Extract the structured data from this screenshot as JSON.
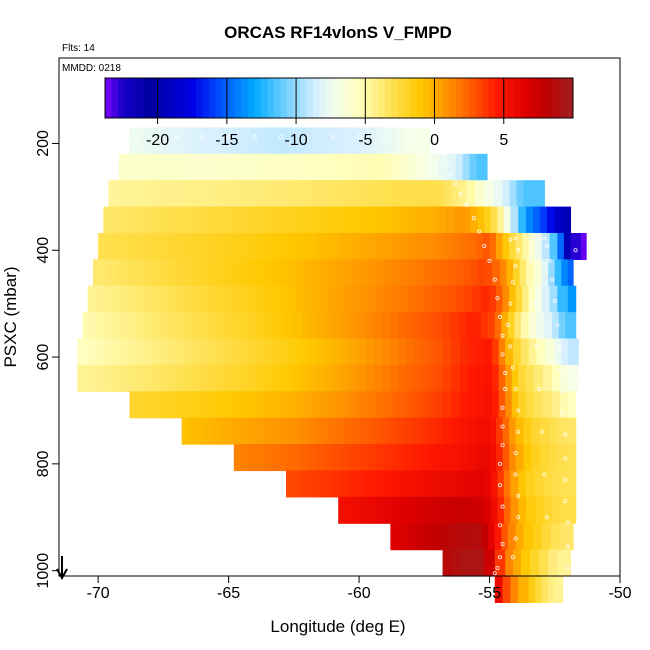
{
  "chart_data": {
    "type": "heatmap",
    "title": "ORCAS RF14vlonS V_FMPD",
    "annotations": {
      "flights": "Flts: 14",
      "date": "MMDD: 0218"
    },
    "xlabel": "Longitude (deg E)",
    "ylabel": "PSXC (mbar)",
    "xlim": [
      -71.5,
      -50
    ],
    "ylim": [
      1010,
      40
    ],
    "y_reversed": true,
    "xticks": [
      -70,
      -65,
      -60,
      -55,
      -50
    ],
    "yticks": [
      200,
      400,
      600,
      800,
      1000
    ],
    "grid": false,
    "colorbar": {
      "placement": "top-inside",
      "range": [
        -23.8,
        10
      ],
      "ticks": [
        -20,
        -15,
        -10,
        -5,
        0,
        5
      ],
      "scale": [
        {
          "v": -23.8,
          "c": "#8000ff"
        },
        {
          "v": -22.5,
          "c": "#1400c8"
        },
        {
          "v": -20.5,
          "c": "#0000a0"
        },
        {
          "v": -17.5,
          "c": "#0000e6"
        },
        {
          "v": -15.5,
          "c": "#0050ff"
        },
        {
          "v": -13.0,
          "c": "#00aaff"
        },
        {
          "v": -10.5,
          "c": "#80d4ff"
        },
        {
          "v": -8.5,
          "c": "#d8f0ff"
        },
        {
          "v": -7.0,
          "c": "#f6ffe8"
        },
        {
          "v": -5.5,
          "c": "#ffffc0"
        },
        {
          "v": -3.0,
          "c": "#ffe050"
        },
        {
          "v": -1.0,
          "c": "#ffc800"
        },
        {
          "v": 1.0,
          "c": "#ff9000"
        },
        {
          "v": 3.0,
          "c": "#ff5000"
        },
        {
          "v": 4.5,
          "c": "#ff1800"
        },
        {
          "v": 6.5,
          "c": "#e00000"
        },
        {
          "v": 8.0,
          "c": "#c00000"
        },
        {
          "v": 10.0,
          "c": "#a02020"
        }
      ]
    },
    "rows": [
      {
        "p": 170,
        "cells": [
          [
            -68.8,
            -7.4
          ],
          [
            -66.0,
            -8.4
          ],
          [
            -63.0,
            -9.0
          ],
          [
            -60.0,
            -8.4
          ],
          [
            -58.0,
            -7.0
          ]
        ],
        "end": -57.3
      },
      {
        "p": 237,
        "cells": [
          [
            -69.2,
            -5.8
          ],
          [
            -66.0,
            -6.0
          ],
          [
            -62.0,
            -5.6
          ],
          [
            -59.0,
            -5.2
          ],
          [
            -57.3,
            -7.0
          ],
          [
            -56.3,
            -8.2
          ],
          [
            -55.5,
            -11.5
          ]
        ],
        "end": -55.1
      },
      {
        "p": 263,
        "cells": [
          [
            -69.6,
            -4.6
          ],
          [
            -66.0,
            -4.2
          ],
          [
            -62.0,
            -3.6
          ],
          [
            -59.0,
            -3.0
          ],
          [
            -57.0,
            -2.8
          ],
          [
            -55.9,
            -4.5
          ],
          [
            -55.2,
            -6.5
          ],
          [
            -54.5,
            -8.0
          ],
          [
            -53.7,
            -11.5
          ]
        ],
        "end": -52.9
      },
      {
        "p": 327,
        "cells": [
          [
            -69.8,
            -3.6
          ],
          [
            -66.0,
            -2.6
          ],
          [
            -62.0,
            -1.6
          ],
          [
            -59.0,
            -0.8
          ],
          [
            -57.0,
            0.0
          ],
          [
            -56.0,
            0.8
          ],
          [
            -55.2,
            -1.0
          ],
          [
            -54.7,
            -3.5
          ],
          [
            -54.2,
            -8.0
          ],
          [
            -53.6,
            -13.5
          ],
          [
            -52.8,
            -16.5
          ],
          [
            -52.2,
            -19.5
          ]
        ],
        "end": -51.9
      },
      {
        "p": 365,
        "cells": [
          [
            -70.0,
            -3.0
          ],
          [
            -66.0,
            -2.0
          ],
          [
            -62.0,
            -0.8
          ],
          [
            -59.0,
            0.4
          ],
          [
            -57.0,
            1.2
          ],
          [
            -55.5,
            2.2
          ],
          [
            -55.0,
            3.0
          ],
          [
            -54.5,
            -0.5
          ],
          [
            -54.0,
            -3.0
          ],
          [
            -53.5,
            -5.5
          ],
          [
            -53.0,
            -8.0
          ],
          [
            -52.4,
            -12.5
          ],
          [
            -51.9,
            -22.0
          ],
          [
            -51.5,
            -23.5
          ]
        ],
        "end": -51.3
      },
      {
        "p": 420,
        "cells": [
          [
            -70.2,
            -3.8
          ],
          [
            -67.0,
            -2.4
          ],
          [
            -63.0,
            -0.8
          ],
          [
            -60.0,
            0.6
          ],
          [
            -57.5,
            1.8
          ],
          [
            -56.0,
            2.6
          ],
          [
            -55.2,
            3.4
          ],
          [
            -54.6,
            2.0
          ],
          [
            -54.1,
            -1.0
          ],
          [
            -53.6,
            -4.5
          ],
          [
            -53.0,
            -7.0
          ],
          [
            -52.5,
            -11.0
          ],
          [
            -52.0,
            -15.0
          ]
        ],
        "end": -51.8
      },
      {
        "p": 468,
        "cells": [
          [
            -70.4,
            -4.6
          ],
          [
            -67.0,
            -3.0
          ],
          [
            -63.0,
            -1.0
          ],
          [
            -60.0,
            0.8
          ],
          [
            -57.5,
            2.2
          ],
          [
            -56.0,
            3.2
          ],
          [
            -55.0,
            4.2
          ],
          [
            -54.5,
            2.0
          ],
          [
            -54.0,
            -1.5
          ],
          [
            -53.5,
            -5.0
          ],
          [
            -53.0,
            -7.5
          ],
          [
            -52.4,
            -10.5
          ],
          [
            -52.0,
            -13.5
          ]
        ],
        "end": -51.7
      },
      {
        "p": 520,
        "cells": [
          [
            -70.6,
            -5.2
          ],
          [
            -68.0,
            -3.8
          ],
          [
            -64.0,
            -1.8
          ],
          [
            -61.0,
            0.2
          ],
          [
            -58.5,
            2.0
          ],
          [
            -56.8,
            3.2
          ],
          [
            -55.6,
            4.4
          ],
          [
            -54.8,
            3.2
          ],
          [
            -54.3,
            -1.0
          ],
          [
            -53.8,
            -4.5
          ],
          [
            -53.2,
            -7.0
          ],
          [
            -52.6,
            -8.5
          ],
          [
            -52.1,
            -11.5
          ]
        ],
        "end": -51.7
      },
      {
        "p": 570,
        "cells": [
          [
            -70.8,
            -5.6
          ],
          [
            -68.0,
            -4.2
          ],
          [
            -64.0,
            -2.2
          ],
          [
            -61.0,
            -0.4
          ],
          [
            -58.5,
            1.6
          ],
          [
            -56.8,
            3.0
          ],
          [
            -55.8,
            4.2
          ],
          [
            -54.9,
            4.6
          ],
          [
            -54.4,
            0.5
          ],
          [
            -53.8,
            -3.0
          ],
          [
            -53.2,
            -5.0
          ],
          [
            -52.5,
            -7.0
          ],
          [
            -52.0,
            -9.0
          ]
        ],
        "end": -51.6
      },
      {
        "p": 630,
        "cells": [
          [
            -70.8,
            -4.6
          ],
          [
            -68.0,
            -3.6
          ],
          [
            -64.0,
            -1.8
          ],
          [
            -61.0,
            0.0
          ],
          [
            -58.5,
            2.0
          ],
          [
            -56.8,
            3.2
          ],
          [
            -55.8,
            4.4
          ],
          [
            -54.9,
            5.0
          ],
          [
            -54.4,
            1.5
          ],
          [
            -53.9,
            -2.0
          ],
          [
            -53.3,
            -3.5
          ],
          [
            -52.6,
            -5.0
          ],
          [
            -52.0,
            -7.0
          ]
        ],
        "end": -51.6
      },
      {
        "p": 683,
        "cells": [
          [
            -68.8,
            -2.2
          ],
          [
            -66.0,
            -1.4
          ],
          [
            -63.0,
            -0.4
          ],
          [
            -60.5,
            1.0
          ],
          [
            -58.5,
            2.4
          ],
          [
            -56.8,
            3.6
          ],
          [
            -55.8,
            4.6
          ],
          [
            -54.9,
            5.2
          ],
          [
            -54.4,
            2.0
          ],
          [
            -53.9,
            -1.5
          ],
          [
            -53.3,
            -3.0
          ],
          [
            -52.6,
            -4.0
          ],
          [
            -52.0,
            -5.5
          ]
        ],
        "end": -51.7
      },
      {
        "p": 742,
        "cells": [
          [
            -66.8,
            -0.8
          ],
          [
            -64.5,
            0.2
          ],
          [
            -62.0,
            1.2
          ],
          [
            -60.0,
            2.4
          ],
          [
            -58.3,
            3.4
          ],
          [
            -56.8,
            4.2
          ],
          [
            -55.8,
            5.0
          ],
          [
            -55.0,
            5.6
          ],
          [
            -54.5,
            3.0
          ],
          [
            -54.0,
            0.0
          ],
          [
            -53.4,
            -2.0
          ],
          [
            -52.7,
            -2.8
          ],
          [
            -52.1,
            -3.5
          ]
        ],
        "end": -51.7
      },
      {
        "p": 793,
        "cells": [
          [
            -64.8,
            1.4
          ],
          [
            -62.5,
            2.2
          ],
          [
            -60.5,
            3.2
          ],
          [
            -58.5,
            4.0
          ],
          [
            -56.8,
            4.8
          ],
          [
            -55.8,
            5.4
          ],
          [
            -55.0,
            6.0
          ],
          [
            -54.5,
            3.5
          ],
          [
            -54.0,
            0.5
          ],
          [
            -53.4,
            -1.5
          ],
          [
            -52.7,
            -2.5
          ],
          [
            -52.1,
            -3.0
          ]
        ],
        "end": -51.7
      },
      {
        "p": 840,
        "cells": [
          [
            -62.8,
            3.2
          ],
          [
            -61.0,
            3.8
          ],
          [
            -59.0,
            4.6
          ],
          [
            -57.5,
            5.4
          ],
          [
            -56.2,
            6.0
          ],
          [
            -55.2,
            6.4
          ],
          [
            -54.7,
            4.5
          ],
          [
            -54.2,
            1.0
          ],
          [
            -53.6,
            -1.5
          ],
          [
            -52.9,
            -2.5
          ],
          [
            -52.3,
            -3.0
          ]
        ],
        "end": -51.7
      },
      {
        "p": 888,
        "cells": [
          [
            -60.8,
            5.2
          ],
          [
            -59.0,
            6.2
          ],
          [
            -57.5,
            7.0
          ],
          [
            -56.2,
            7.6
          ],
          [
            -55.2,
            7.2
          ],
          [
            -54.7,
            5.0
          ],
          [
            -54.2,
            1.5
          ],
          [
            -53.6,
            -1.0
          ],
          [
            -52.9,
            -2.0
          ],
          [
            -52.3,
            -2.8
          ]
        ],
        "end": -51.7
      },
      {
        "p": 940,
        "cells": [
          [
            -58.8,
            6.4
          ],
          [
            -57.5,
            7.6
          ],
          [
            -56.2,
            8.6
          ],
          [
            -55.3,
            8.8
          ],
          [
            -54.8,
            5.5
          ],
          [
            -54.3,
            2.0
          ],
          [
            -53.7,
            -0.5
          ],
          [
            -53.0,
            -2.0
          ],
          [
            -52.3,
            -3.5
          ]
        ],
        "end": -51.8
      },
      {
        "p": 988,
        "cells": [
          [
            -56.8,
            8.4
          ],
          [
            -55.8,
            9.4
          ],
          [
            -55.2,
            9.2
          ],
          [
            -54.8,
            5.5
          ],
          [
            -54.4,
            2.0
          ],
          [
            -53.8,
            -0.5
          ],
          [
            -53.1,
            -2.5
          ],
          [
            -52.4,
            -4.5
          ]
        ],
        "end": -51.9
      },
      {
        "p": 1010,
        "cells": [
          [
            -54.8,
            7.0
          ],
          [
            -54.5,
            4.5
          ],
          [
            -54.2,
            2.0
          ],
          [
            -53.9,
            0.5
          ],
          [
            -53.5,
            -1.0
          ],
          [
            -53.0,
            -3.0
          ],
          [
            -52.5,
            -4.5
          ]
        ],
        "end": -52.2
      }
    ],
    "track_points": [
      [
        -68.5,
        195
      ],
      [
        -67.8,
        190
      ],
      [
        -67.0,
        189
      ],
      [
        -66.0,
        188
      ],
      [
        -65.0,
        188
      ],
      [
        -64.0,
        188
      ],
      [
        -63.0,
        188
      ],
      [
        -62.0,
        188
      ],
      [
        -61.0,
        188
      ],
      [
        -60.0,
        188
      ],
      [
        -59.0,
        188
      ],
      [
        -58.0,
        188
      ],
      [
        -57.4,
        188
      ],
      [
        -56.7,
        222
      ],
      [
        -56.6,
        240
      ],
      [
        -56.5,
        258
      ],
      [
        -56.3,
        275
      ],
      [
        -56.1,
        295
      ],
      [
        -55.9,
        315
      ],
      [
        -55.6,
        340
      ],
      [
        -55.4,
        365
      ],
      [
        -55.2,
        392
      ],
      [
        -55.0,
        420
      ],
      [
        -54.8,
        455
      ],
      [
        -54.7,
        490
      ],
      [
        -54.6,
        525
      ],
      [
        -54.5,
        560
      ],
      [
        -54.5,
        595
      ],
      [
        -54.4,
        630
      ],
      [
        -54.4,
        660
      ],
      [
        -54.5,
        695
      ],
      [
        -54.5,
        730
      ],
      [
        -54.5,
        765
      ],
      [
        -54.6,
        800
      ],
      [
        -54.6,
        840
      ],
      [
        -54.5,
        880
      ],
      [
        -54.6,
        915
      ],
      [
        -54.5,
        950
      ],
      [
        -54.6,
        975
      ],
      [
        -54.7,
        995
      ],
      [
        -54.8,
        1005
      ],
      [
        -54.2,
        380
      ],
      [
        -54.0,
        378
      ],
      [
        -53.9,
        400
      ],
      [
        -54.0,
        430
      ],
      [
        -54.1,
        460
      ],
      [
        -54.2,
        500
      ],
      [
        -54.3,
        540
      ],
      [
        -54.2,
        580
      ],
      [
        -54.1,
        620
      ],
      [
        -54.0,
        660
      ],
      [
        -53.9,
        700
      ],
      [
        -53.9,
        740
      ],
      [
        -54.0,
        780
      ],
      [
        -54.0,
        820
      ],
      [
        -53.9,
        860
      ],
      [
        -53.9,
        900
      ],
      [
        -54.0,
        940
      ],
      [
        -54.1,
        975
      ],
      [
        -52.9,
        378
      ],
      [
        -52.8,
        392
      ],
      [
        -52.7,
        420
      ],
      [
        -52.6,
        455
      ],
      [
        -52.5,
        495
      ],
      [
        -52.4,
        540
      ],
      [
        -52.3,
        585
      ],
      [
        -52.3,
        625
      ],
      [
        -52.2,
        665
      ],
      [
        -52.2,
        705
      ],
      [
        -52.1,
        745
      ],
      [
        -52.1,
        790
      ],
      [
        -52.1,
        830
      ],
      [
        -52.1,
        870
      ],
      [
        -52.0,
        910
      ],
      [
        -52.0,
        955
      ],
      [
        -52.0,
        995
      ],
      [
        -53.4,
        420
      ],
      [
        -53.3,
        500
      ],
      [
        -53.2,
        580
      ],
      [
        -53.1,
        660
      ],
      [
        -53.0,
        740
      ],
      [
        -52.9,
        820
      ],
      [
        -52.8,
        900
      ],
      [
        -51.7,
        400
      ],
      [
        -51.7,
        440
      ],
      [
        -51.6,
        480
      ],
      [
        -51.6,
        560
      ],
      [
        -51.6,
        640
      ]
    ]
  }
}
